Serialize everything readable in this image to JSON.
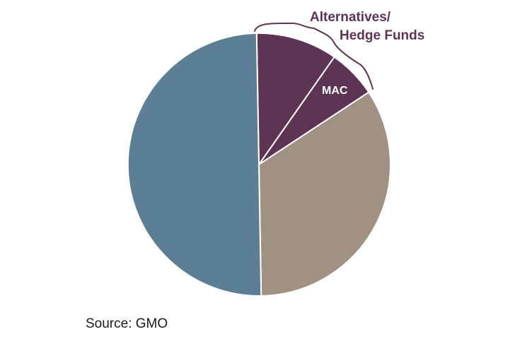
{
  "chart_data": {
    "type": "pie",
    "slices": [
      {
        "label": "Alternatives/ Hedge Funds",
        "value": 10.0,
        "color": "#5e3454"
      },
      {
        "label": "MAC",
        "value": 6.0,
        "color": "#5e3454"
      },
      {
        "label": "",
        "value": 34.0,
        "color": "#a19182"
      },
      {
        "label": "",
        "value": 50.0,
        "color": "#5d7f96"
      }
    ],
    "annotations": {
      "bracket_label_line1": "Alternatives/",
      "bracket_label_line2": "Hedge Funds",
      "mac_label": "MAC"
    },
    "label_color": "#5e3454",
    "start_angle_deg": -1,
    "direction": "clockwise"
  },
  "source": "Source: GMO"
}
